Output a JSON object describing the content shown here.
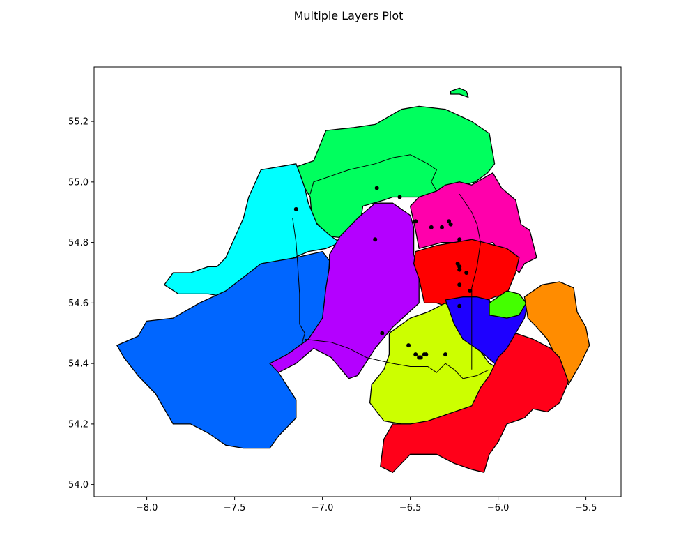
{
  "title": "Multiple Layers Plot",
  "chart_data": {
    "type": "map",
    "xlim": [
      -8.3,
      -5.3
    ],
    "ylim": [
      53.96,
      55.38
    ],
    "xticks": [
      -8.0,
      -7.5,
      -7.0,
      -6.5,
      -6.0,
      -5.5
    ],
    "xtick_labels": [
      "−8.0",
      "−7.5",
      "−7.0",
      "−6.5",
      "−6.0",
      "−5.5"
    ],
    "yticks": [
      54.0,
      54.2,
      54.4,
      54.6,
      54.8,
      55.0,
      55.2
    ],
    "ytick_labels": [
      "54.0",
      "54.2",
      "54.4",
      "54.6",
      "54.8",
      "55.0",
      "55.2"
    ],
    "grid": false,
    "regions": [
      {
        "color": "#00ff5e",
        "points": [
          [
            -7.05,
            55.07
          ],
          [
            -6.98,
            55.17
          ],
          [
            -6.82,
            55.18
          ],
          [
            -6.7,
            55.19
          ],
          [
            -6.55,
            55.24
          ],
          [
            -6.45,
            55.25
          ],
          [
            -6.3,
            55.24
          ],
          [
            -6.15,
            55.2
          ],
          [
            -6.05,
            55.16
          ],
          [
            -6.02,
            55.06
          ],
          [
            -6.06,
            55.03
          ],
          [
            -6.13,
            55.0
          ],
          [
            -6.25,
            54.98
          ],
          [
            -6.33,
            54.96
          ],
          [
            -6.45,
            54.95
          ],
          [
            -6.6,
            54.95
          ],
          [
            -6.65,
            54.94
          ],
          [
            -6.77,
            54.92
          ],
          [
            -6.8,
            54.81
          ],
          [
            -6.96,
            54.82
          ],
          [
            -7.06,
            54.88
          ],
          [
            -7.07,
            54.95
          ],
          [
            -7.13,
            55.01
          ],
          [
            -7.15,
            55.05
          ]
        ]
      },
      {
        "color": "#00ffff",
        "points": [
          [
            -7.13,
            55.03
          ],
          [
            -7.15,
            55.06
          ],
          [
            -7.25,
            55.05
          ],
          [
            -7.35,
            55.04
          ],
          [
            -7.42,
            54.95
          ],
          [
            -7.45,
            54.88
          ],
          [
            -7.55,
            54.75
          ],
          [
            -7.6,
            54.72
          ],
          [
            -7.65,
            54.72
          ],
          [
            -7.75,
            54.7
          ],
          [
            -7.85,
            54.7
          ],
          [
            -7.9,
            54.66
          ],
          [
            -7.82,
            54.63
          ],
          [
            -7.65,
            54.63
          ],
          [
            -7.55,
            54.62
          ],
          [
            -7.35,
            54.7
          ],
          [
            -7.2,
            54.74
          ],
          [
            -7.08,
            54.77
          ],
          [
            -6.98,
            54.78
          ],
          [
            -6.9,
            54.8
          ],
          [
            -6.95,
            54.82
          ],
          [
            -7.03,
            54.86
          ],
          [
            -7.08,
            54.93
          ],
          [
            -7.1,
            54.98
          ]
        ]
      },
      {
        "color": "#0066ff",
        "points": [
          [
            -7.55,
            54.64
          ],
          [
            -7.35,
            54.73
          ],
          [
            -7.15,
            54.75
          ],
          [
            -7.0,
            54.77
          ],
          [
            -6.96,
            54.74
          ],
          [
            -6.98,
            54.55
          ],
          [
            -7.08,
            54.48
          ],
          [
            -7.2,
            54.43
          ],
          [
            -7.25,
            54.37
          ],
          [
            -7.15,
            54.28
          ],
          [
            -7.15,
            54.22
          ],
          [
            -7.25,
            54.16
          ],
          [
            -7.3,
            54.12
          ],
          [
            -7.45,
            54.12
          ],
          [
            -7.55,
            54.13
          ],
          [
            -7.65,
            54.17
          ],
          [
            -7.75,
            54.2
          ],
          [
            -7.85,
            54.2
          ],
          [
            -7.95,
            54.3
          ],
          [
            -8.05,
            54.36
          ],
          [
            -8.13,
            54.42
          ],
          [
            -8.17,
            54.46
          ],
          [
            -8.05,
            54.49
          ],
          [
            -8.0,
            54.54
          ],
          [
            -7.85,
            54.55
          ],
          [
            -7.7,
            54.6
          ]
        ]
      },
      {
        "color": "#b400ff",
        "points": [
          [
            -6.96,
            54.76
          ],
          [
            -6.9,
            54.82
          ],
          [
            -6.8,
            54.88
          ],
          [
            -6.7,
            54.93
          ],
          [
            -6.6,
            54.93
          ],
          [
            -6.5,
            54.89
          ],
          [
            -6.48,
            54.85
          ],
          [
            -6.48,
            54.76
          ],
          [
            -6.45,
            54.7
          ],
          [
            -6.45,
            54.6
          ],
          [
            -6.6,
            54.52
          ],
          [
            -6.7,
            54.45
          ],
          [
            -6.8,
            54.36
          ],
          [
            -6.85,
            54.35
          ],
          [
            -6.95,
            54.42
          ],
          [
            -7.05,
            54.45
          ],
          [
            -7.15,
            54.4
          ],
          [
            -7.25,
            54.37
          ],
          [
            -7.3,
            54.4
          ],
          [
            -7.2,
            54.43
          ],
          [
            -7.08,
            54.48
          ],
          [
            -7.0,
            54.55
          ],
          [
            -6.98,
            54.65
          ],
          [
            -6.96,
            54.72
          ]
        ]
      },
      {
        "color": "#ff00ab",
        "points": [
          [
            -6.5,
            54.92
          ],
          [
            -6.45,
            54.95
          ],
          [
            -6.35,
            54.97
          ],
          [
            -6.3,
            54.99
          ],
          [
            -6.22,
            55.0
          ],
          [
            -6.15,
            54.99
          ],
          [
            -6.03,
            55.03
          ],
          [
            -5.98,
            54.98
          ],
          [
            -5.9,
            54.94
          ],
          [
            -5.87,
            54.86
          ],
          [
            -5.82,
            54.84
          ],
          [
            -5.78,
            54.75
          ],
          [
            -5.85,
            54.73
          ],
          [
            -5.88,
            54.7
          ],
          [
            -5.95,
            54.74
          ],
          [
            -6.03,
            54.8
          ],
          [
            -6.1,
            54.79
          ],
          [
            -6.2,
            54.8
          ],
          [
            -6.32,
            54.8
          ],
          [
            -6.45,
            54.78
          ],
          [
            -6.47,
            54.84
          ]
        ]
      },
      {
        "color": "#ff0000",
        "points": [
          [
            -6.47,
            54.77
          ],
          [
            -6.35,
            54.79
          ],
          [
            -6.25,
            54.8
          ],
          [
            -6.15,
            54.81
          ],
          [
            -6.08,
            54.8
          ],
          [
            -5.95,
            54.78
          ],
          [
            -5.88,
            54.75
          ],
          [
            -5.9,
            54.7
          ],
          [
            -5.95,
            54.63
          ],
          [
            -6.02,
            54.62
          ],
          [
            -6.1,
            54.6
          ],
          [
            -6.18,
            54.6
          ],
          [
            -6.25,
            54.58
          ],
          [
            -6.35,
            54.6
          ],
          [
            -6.42,
            54.6
          ],
          [
            -6.45,
            54.68
          ],
          [
            -6.48,
            54.73
          ]
        ]
      },
      {
        "color": "#ccff00",
        "points": [
          [
            -6.62,
            54.5
          ],
          [
            -6.5,
            54.55
          ],
          [
            -6.4,
            54.57
          ],
          [
            -6.3,
            54.6
          ],
          [
            -6.25,
            54.57
          ],
          [
            -6.2,
            54.52
          ],
          [
            -6.15,
            54.47
          ],
          [
            -6.1,
            54.44
          ],
          [
            -6.05,
            54.4
          ],
          [
            -5.95,
            54.37
          ],
          [
            -5.98,
            54.32
          ],
          [
            -6.0,
            54.28
          ],
          [
            -6.05,
            54.26
          ],
          [
            -6.15,
            54.24
          ],
          [
            -6.25,
            54.23
          ],
          [
            -6.35,
            54.21
          ],
          [
            -6.45,
            54.2
          ],
          [
            -6.55,
            54.2
          ],
          [
            -6.65,
            54.21
          ],
          [
            -6.73,
            54.27
          ],
          [
            -6.72,
            54.33
          ],
          [
            -6.65,
            54.38
          ],
          [
            -6.62,
            54.43
          ]
        ]
      },
      {
        "color": "#1e00ff",
        "points": [
          [
            -6.3,
            54.61
          ],
          [
            -6.2,
            54.62
          ],
          [
            -6.12,
            54.62
          ],
          [
            -6.05,
            54.61
          ],
          [
            -6.03,
            54.58
          ],
          [
            -5.95,
            54.57
          ],
          [
            -5.87,
            54.58
          ],
          [
            -5.83,
            54.6
          ],
          [
            -5.85,
            54.55
          ],
          [
            -5.9,
            54.5
          ],
          [
            -5.92,
            54.44
          ],
          [
            -5.95,
            54.42
          ],
          [
            -6.02,
            54.4
          ],
          [
            -6.1,
            54.44
          ],
          [
            -6.2,
            54.48
          ],
          [
            -6.25,
            54.53
          ],
          [
            -6.28,
            54.58
          ]
        ]
      },
      {
        "color": "#44ff00",
        "points": [
          [
            -6.05,
            54.6
          ],
          [
            -6.0,
            54.62
          ],
          [
            -5.95,
            54.64
          ],
          [
            -5.88,
            54.63
          ],
          [
            -5.84,
            54.6
          ],
          [
            -5.88,
            54.56
          ],
          [
            -5.95,
            54.55
          ],
          [
            -6.05,
            54.56
          ]
        ]
      },
      {
        "color": "#ff8c00",
        "points": [
          [
            -5.85,
            54.62
          ],
          [
            -5.75,
            54.66
          ],
          [
            -5.65,
            54.67
          ],
          [
            -5.57,
            54.65
          ],
          [
            -5.55,
            54.57
          ],
          [
            -5.5,
            54.52
          ],
          [
            -5.48,
            54.46
          ],
          [
            -5.53,
            54.4
          ],
          [
            -5.6,
            54.33
          ],
          [
            -5.65,
            54.4
          ],
          [
            -5.72,
            54.48
          ],
          [
            -5.78,
            54.52
          ],
          [
            -5.83,
            54.55
          ]
        ]
      },
      {
        "color": "#ff0019",
        "points": [
          [
            -5.9,
            54.5
          ],
          [
            -5.8,
            54.48
          ],
          [
            -5.7,
            54.45
          ],
          [
            -5.65,
            54.42
          ],
          [
            -5.6,
            54.34
          ],
          [
            -5.65,
            54.27
          ],
          [
            -5.72,
            54.24
          ],
          [
            -5.8,
            54.25
          ],
          [
            -5.85,
            54.22
          ],
          [
            -5.95,
            54.2
          ],
          [
            -6.0,
            54.14
          ],
          [
            -6.05,
            54.1
          ],
          [
            -6.08,
            54.04
          ],
          [
            -6.15,
            54.05
          ],
          [
            -6.25,
            54.07
          ],
          [
            -6.35,
            54.1
          ],
          [
            -6.5,
            54.1
          ],
          [
            -6.6,
            54.04
          ],
          [
            -6.67,
            54.06
          ],
          [
            -6.65,
            54.15
          ],
          [
            -6.6,
            54.2
          ],
          [
            -6.5,
            54.2
          ],
          [
            -6.4,
            54.21
          ],
          [
            -6.3,
            54.23
          ],
          [
            -6.15,
            54.26
          ],
          [
            -6.1,
            54.32
          ],
          [
            -6.05,
            54.36
          ],
          [
            -6.0,
            54.42
          ],
          [
            -5.95,
            54.45
          ]
        ]
      },
      {
        "color": "#00ff5e",
        "points": [
          [
            -6.27,
            55.3
          ],
          [
            -6.22,
            55.31
          ],
          [
            -6.18,
            55.3
          ],
          [
            -6.17,
            55.28
          ],
          [
            -6.22,
            55.29
          ],
          [
            -6.27,
            55.29
          ]
        ]
      }
    ],
    "lines": [
      [
        [
          -7.07,
          54.96
        ],
        [
          -7.05,
          55.0
        ],
        [
          -6.95,
          55.02
        ],
        [
          -6.85,
          55.04
        ],
        [
          -6.7,
          55.06
        ],
        [
          -6.6,
          55.08
        ],
        [
          -6.5,
          55.09
        ],
        [
          -6.4,
          55.06
        ],
        [
          -6.35,
          55.04
        ],
        [
          -6.38,
          55.0
        ],
        [
          -6.35,
          54.97
        ]
      ],
      [
        [
          -7.17,
          54.88
        ],
        [
          -7.15,
          54.8
        ],
        [
          -7.14,
          54.72
        ],
        [
          -7.13,
          54.63
        ],
        [
          -7.13,
          54.53
        ],
        [
          -7.1,
          54.5
        ],
        [
          -7.12,
          54.46
        ]
      ],
      [
        [
          -7.1,
          54.48
        ],
        [
          -6.95,
          54.47
        ],
        [
          -6.85,
          54.45
        ],
        [
          -6.75,
          54.42
        ],
        [
          -6.6,
          54.4
        ],
        [
          -6.5,
          54.39
        ],
        [
          -6.4,
          54.39
        ],
        [
          -6.35,
          54.37
        ],
        [
          -6.3,
          54.4
        ],
        [
          -6.25,
          54.38
        ],
        [
          -6.2,
          54.35
        ],
        [
          -6.12,
          54.36
        ],
        [
          -6.05,
          54.38
        ]
      ],
      [
        [
          -6.22,
          54.96
        ],
        [
          -6.15,
          54.9
        ],
        [
          -6.12,
          54.86
        ],
        [
          -6.1,
          54.8
        ],
        [
          -6.12,
          54.72
        ],
        [
          -6.15,
          54.65
        ],
        [
          -6.15,
          54.58
        ],
        [
          -6.15,
          54.5
        ],
        [
          -6.15,
          54.42
        ],
        [
          -6.15,
          54.38
        ]
      ]
    ],
    "points": [
      [
        -7.15,
        54.91
      ],
      [
        -6.69,
        54.98
      ],
      [
        -6.56,
        54.95
      ],
      [
        -6.47,
        54.87
      ],
      [
        -6.38,
        54.85
      ],
      [
        -6.32,
        54.85
      ],
      [
        -6.28,
        54.87
      ],
      [
        -6.27,
        54.86
      ],
      [
        -6.22,
        54.81
      ],
      [
        -6.7,
        54.81
      ],
      [
        -6.22,
        54.72
      ],
      [
        -6.22,
        54.71
      ],
      [
        -6.23,
        54.73
      ],
      [
        -6.18,
        54.7
      ],
      [
        -6.16,
        54.64
      ],
      [
        -6.22,
        54.66
      ],
      [
        -6.22,
        54.59
      ],
      [
        -6.66,
        54.5
      ],
      [
        -6.51,
        54.46
      ],
      [
        -6.47,
        54.43
      ],
      [
        -6.45,
        54.42
      ],
      [
        -6.44,
        54.42
      ],
      [
        -6.42,
        54.43
      ],
      [
        -6.41,
        54.43
      ],
      [
        -6.3,
        54.43
      ]
    ],
    "point_color": "#000000",
    "region_outline": "#000000"
  }
}
